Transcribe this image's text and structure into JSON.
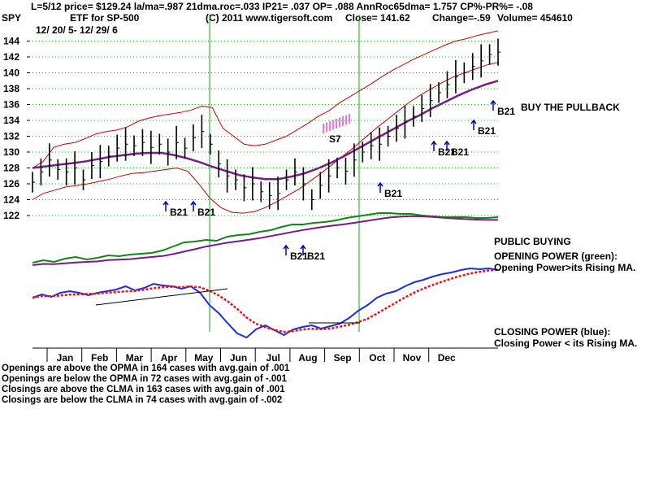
{
  "header": {
    "line1": "L=5/12  price= $129.24  la/ma=.987 21dma.roc=.033 IP21= .037 OP= .088 AnnRoc65dma= 1.757 CP%-PR%= -.08",
    "ticker": "SPY",
    "etf": "ETF for SP-500",
    "copyright": "(C) 2011 www.tigersoft.com",
    "close": "Close=  141.62",
    "change": "Change=-.59",
    "volume": "Volume=  454610",
    "daterange": "12/ 20/ 5- 12/ 29/ 6"
  },
  "annotations": {
    "buy_the_pullback": "BUY THE PULLBACK",
    "public_buying": "PUBLIC BUYING",
    "opening_power_title": "OPENING POWER (green):",
    "opening_power_desc": "Opening Power>its Rising MA.",
    "closing_power_title": "CLOSING POWER (blue):",
    "closing_power_desc": "Closing Power < its Rising MA.",
    "s7": "S7"
  },
  "signals": [
    {
      "label": "B21",
      "month": "Apr"
    },
    {
      "label": "B21",
      "month": "May"
    },
    {
      "label": "B21",
      "month": "Jul"
    },
    {
      "label": "B21",
      "month": "Aug"
    },
    {
      "label": "B21",
      "month": "Sep"
    },
    {
      "label": "B21",
      "month": "Oct"
    },
    {
      "label": "B21",
      "month": "Nov"
    },
    {
      "label": "B21",
      "month": "Dec"
    },
    {
      "label": "B21",
      "month": "Sep"
    }
  ],
  "stats": [
    "Openings are above the OPMA in  164 cases with avg.gain of  .001",
    "Openings are below the OPMA in  72 cases with avg.gain of -.001",
    "Closings are above the CLMA in  163 cases with avg.gain of  .001",
    "Closings are below the CLMA in  74 cases with avg.gain of -.002"
  ],
  "colors": {
    "price_bars": "#000000",
    "bollinger": "#cc0000",
    "ma_purple": "#7a1a8a",
    "opening_power": "#118811",
    "closing_power": "#1a2ee8",
    "cp_ma": "#ee1111",
    "vertical_lines": "#11aa11",
    "signal_arrow": "#0000cc",
    "grid": "#22aa22",
    "s7_marks": "#ee44ee"
  },
  "chart_data": {
    "type": "line",
    "title": "SPY",
    "months": [
      "Jan",
      "Feb",
      "Mar",
      "Apr",
      "May",
      "Jun",
      "Jul",
      "Aug",
      "Sep",
      "Oct",
      "Nov",
      "Dec"
    ],
    "yticks": [
      122,
      124,
      126,
      128,
      130,
      132,
      134,
      136,
      138,
      140,
      142,
      144
    ],
    "ylim": [
      121,
      145
    ],
    "grid": true,
    "series": [
      {
        "name": "SPY price",
        "key": "price",
        "values": [
          126.2,
          127.5,
          129.0,
          127.8,
          127.5,
          128.0,
          126.5,
          128.3,
          128.8,
          129.5,
          130.5,
          131.0,
          130.8,
          131.2,
          130.6,
          131.0,
          130.0,
          131.2,
          130.5,
          131.8,
          132.6,
          131.0,
          128.5,
          127.0,
          126.5,
          125.5,
          126.0,
          125.0,
          124.5,
          124.8,
          126.5,
          127.5,
          126.0,
          124.0,
          125.8,
          127.0,
          128.0,
          127.6,
          129.0,
          130.0,
          130.8,
          131.0,
          132.0,
          133.0,
          133.8,
          134.5,
          135.5,
          136.5,
          137.5,
          138.5,
          139.5,
          140.0,
          140.8,
          141.5,
          142.3,
          142.6
        ]
      },
      {
        "name": "upper band",
        "key": "bb_upper",
        "values": [
          128.0,
          128.8,
          130.6,
          131.0,
          131.2,
          131.7,
          132.3,
          132.6,
          132.8,
          133.2,
          133.9,
          134.3,
          134.6,
          134.8,
          135.0,
          135.3,
          135.8,
          135.6,
          133.0,
          132.0,
          131.0,
          130.8,
          131.0,
          131.5,
          132.0,
          132.8,
          133.6,
          134.5,
          135.2,
          136.2,
          137.0,
          137.8,
          138.6,
          139.5,
          140.3,
          141.0,
          141.7,
          142.3,
          142.9,
          143.5,
          144.0,
          144.3,
          144.7,
          145.0,
          145.3
        ]
      },
      {
        "name": "lower band",
        "key": "bb_lower",
        "values": [
          124.0,
          124.8,
          125.2,
          125.6,
          125.8,
          126.0,
          126.3,
          126.6,
          127.0,
          127.3,
          127.4,
          127.6,
          127.8,
          128.0,
          127.6,
          126.0,
          124.2,
          123.0,
          122.4,
          122.3,
          122.5,
          123.0,
          123.7,
          124.5,
          125.3,
          126.3,
          127.3,
          128.4,
          129.5,
          130.6,
          131.8,
          133.0,
          134.1,
          135.2,
          136.3,
          137.2,
          138.0,
          138.8,
          139.5,
          140.0,
          140.5,
          141.0,
          141.3
        ]
      },
      {
        "name": "moving average",
        "key": "ma",
        "values": [
          128.0,
          128.2,
          128.4,
          128.6,
          128.8,
          129.1,
          129.4,
          129.6,
          129.8,
          129.9,
          129.9,
          129.6,
          129.2,
          128.7,
          128.1,
          127.6,
          127.1,
          126.8,
          126.6,
          126.6,
          126.9,
          127.3,
          127.9,
          128.6,
          129.4,
          130.3,
          131.2,
          132.1,
          133.0,
          133.9,
          134.7,
          135.6,
          136.4,
          137.2,
          137.9,
          138.5,
          139.0
        ]
      },
      {
        "name": "Opening Power",
        "key": "op",
        "values": [
          323,
          320,
          322,
          318,
          316,
          319,
          317,
          314,
          315,
          313,
          312,
          311,
          308,
          303,
          298,
          297,
          295,
          296,
          291,
          289,
          288,
          285,
          283,
          279,
          276,
          276,
          274,
          273,
          271,
          268,
          266,
          264,
          262,
          262,
          263,
          263,
          265,
          266,
          267,
          267,
          267,
          268,
          268,
          267
        ]
      },
      {
        "name": "Closing Power",
        "key": "cp",
        "values": [
          366,
          362,
          365,
          360,
          358,
          360,
          363,
          360,
          358,
          356,
          352,
          357,
          354,
          349,
          351,
          352,
          355,
          352,
          360,
          375,
          385,
          398,
          410,
          415,
          405,
          400,
          406,
          412,
          405,
          402,
          400,
          404,
          401,
          398,
          391,
          382,
          375,
          366,
          361,
          358,
          352,
          347,
          344,
          340,
          337,
          335,
          332,
          330,
          331,
          330,
          332
        ]
      }
    ]
  }
}
